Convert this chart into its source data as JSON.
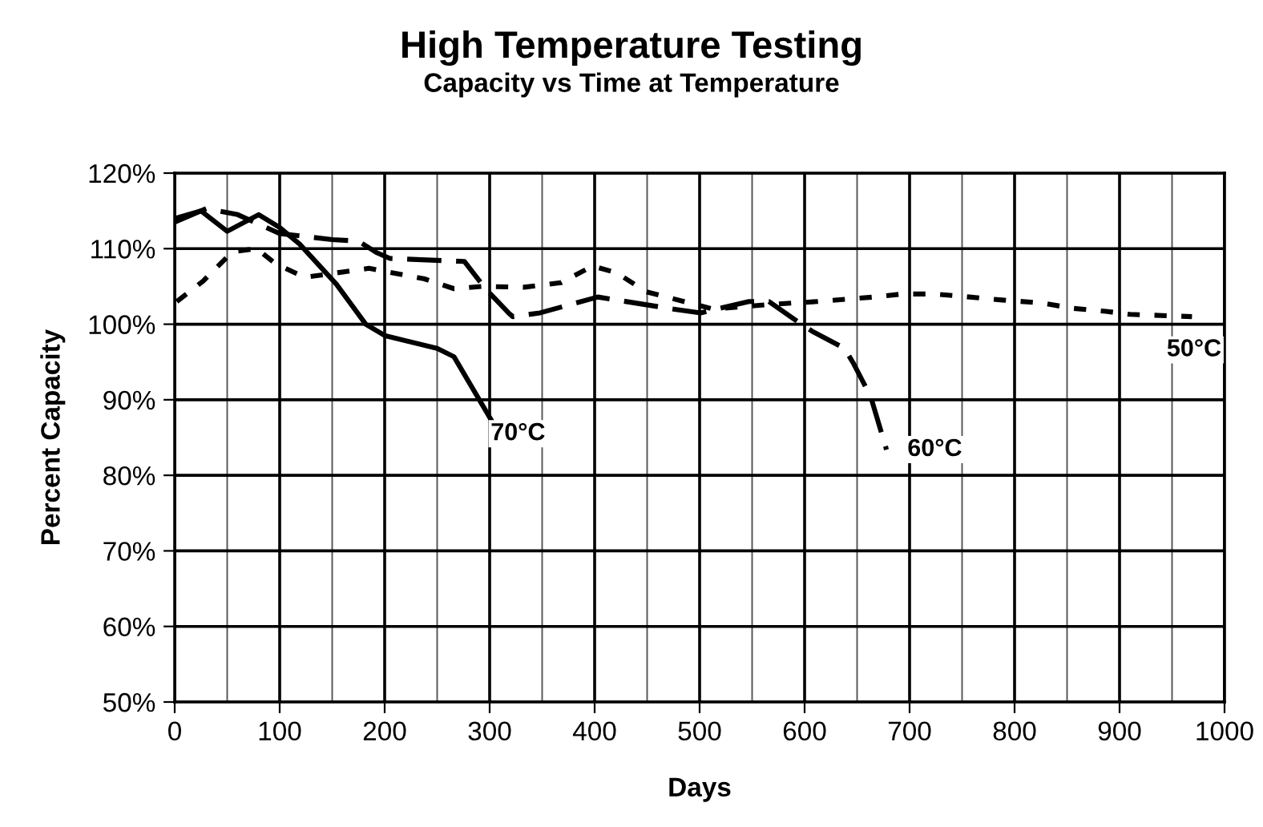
{
  "chart_data": {
    "type": "line",
    "title": "High Temperature Testing",
    "subtitle": "Capacity vs Time at Temperature",
    "xlabel": "Days",
    "ylabel": "Percent Capacity",
    "xlim": [
      0,
      1000
    ],
    "xticks": [
      0,
      100,
      200,
      300,
      400,
      500,
      600,
      700,
      800,
      900,
      1000
    ],
    "ylim": [
      50,
      120
    ],
    "yticks": [
      {
        "value": 50,
        "label": "50%"
      },
      {
        "value": 60,
        "label": "60%"
      },
      {
        "value": 70,
        "label": "70%"
      },
      {
        "value": 80,
        "label": "80%"
      },
      {
        "value": 90,
        "label": "90%"
      },
      {
        "value": 100,
        "label": "100%"
      },
      {
        "value": 110,
        "label": "110%"
      },
      {
        "value": 120,
        "label": "120%"
      }
    ],
    "grid": true,
    "series": [
      {
        "color": "#000000",
        "line_style": "solid",
        "x": [
          0,
          25,
          50,
          80,
          100,
          119,
          154,
          182,
          200,
          250,
          266,
          302
        ],
        "values": [
          114,
          115,
          112.3,
          114.5,
          112.8,
          110.6,
          105.3,
          100,
          98.5,
          96.8,
          95.7,
          87.2
        ]
      },
      {
        "color": "#000000",
        "line_style": "dashed",
        "x": [
          0,
          30,
          60,
          100,
          150,
          175,
          192,
          205,
          276,
          296,
          318,
          322,
          348,
          403,
          475,
          501,
          547,
          566,
          597,
          608,
          638,
          647,
          663,
          678
        ],
        "values": [
          113.5,
          115.3,
          114.5,
          112,
          111.2,
          111,
          109.5,
          108.7,
          108.3,
          104.7,
          101.5,
          101,
          101.5,
          103.6,
          102,
          101.5,
          103,
          103,
          100,
          99,
          96.8,
          94.7,
          90.4,
          83.4
        ]
      },
      {
        "color": "#000000",
        "line_style": "dotted",
        "x": [
          2,
          27,
          55,
          78,
          96,
          124,
          185,
          238,
          266,
          292,
          333,
          368,
          398,
          421,
          449,
          513,
          566,
          612,
          666,
          693,
          724,
          757,
          788,
          826,
          856,
          887,
          910,
          969
        ],
        "values": [
          103,
          105.7,
          109.6,
          110,
          108,
          106.2,
          107.4,
          106,
          104.7,
          105,
          104.9,
          105.5,
          107.7,
          106.8,
          104.3,
          102,
          102.6,
          103,
          103.6,
          104,
          104,
          103.6,
          103.2,
          102.8,
          102.1,
          101.7,
          101.3,
          101
        ]
      }
    ],
    "annotations": [
      {
        "text": "70°C",
        "x": 327,
        "y": 85.5
      },
      {
        "text": "60°C",
        "x": 724,
        "y": 83.4
      },
      {
        "text": "50°C",
        "x": 971,
        "y": 96.6
      }
    ]
  }
}
